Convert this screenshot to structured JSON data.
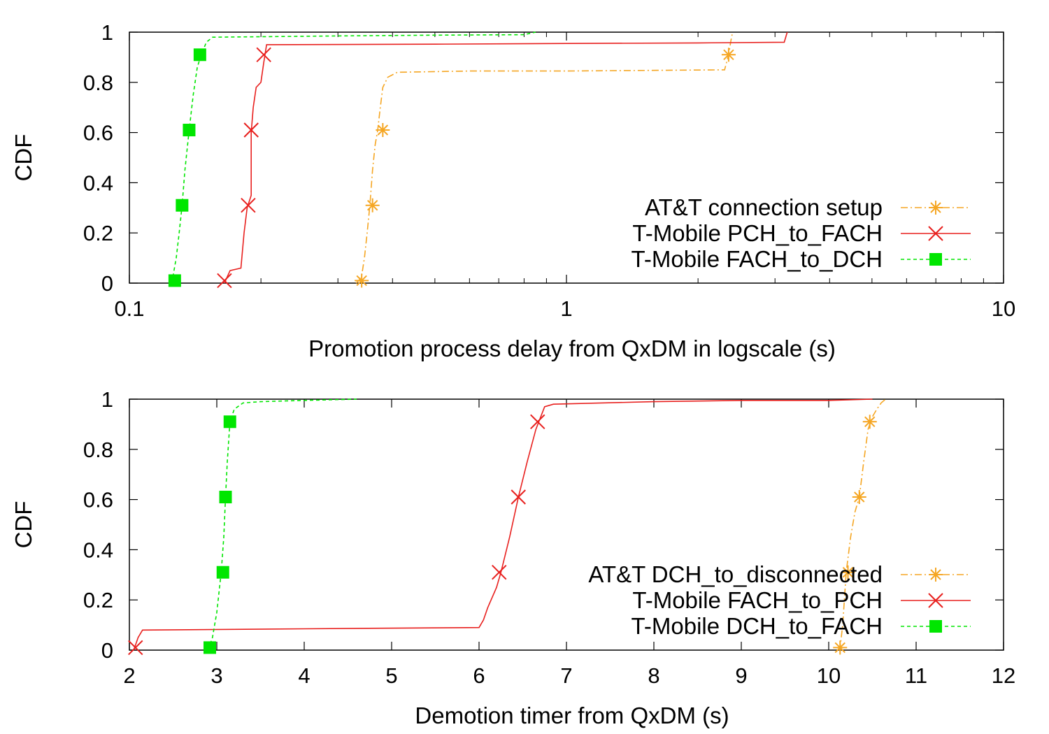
{
  "chart_data": [
    {
      "type": "line",
      "xscale": "log",
      "xlim": [
        0.1,
        10
      ],
      "ylim": [
        0,
        1
      ],
      "xticks": [
        0.1,
        1,
        10
      ],
      "xtick_labels": [
        "0.1",
        "1",
        "10"
      ],
      "yticks": [
        0,
        0.2,
        0.4,
        0.6,
        0.8,
        1
      ],
      "ytick_labels": [
        "0",
        "0.2",
        "0.4",
        "0.6",
        "0.8",
        "1"
      ],
      "xlabel": "Promotion process delay from QxDM in logscale (s)",
      "ylabel": "CDF",
      "legend_position": "bottom-right",
      "series": [
        {
          "name": "AT&T connection setup",
          "color": "#f5a623",
          "line": "dashdot",
          "marker": "asterisk",
          "points": [
            [
              0.33,
              0
            ],
            [
              0.335,
              0.01
            ],
            [
              0.34,
              0.03
            ],
            [
              0.345,
              0.1
            ],
            [
              0.35,
              0.2
            ],
            [
              0.355,
              0.31
            ],
            [
              0.36,
              0.45
            ],
            [
              0.365,
              0.55
            ],
            [
              0.37,
              0.61
            ],
            [
              0.375,
              0.7
            ],
            [
              0.38,
              0.78
            ],
            [
              0.39,
              0.82
            ],
            [
              0.41,
              0.84
            ],
            [
              0.6,
              0.845
            ],
            [
              1.0,
              0.845
            ],
            [
              2.3,
              0.85
            ],
            [
              2.35,
              0.91
            ],
            [
              2.38,
              0.97
            ],
            [
              2.4,
              1.0
            ]
          ],
          "markers": [
            [
              0.34,
              0.01
            ],
            [
              0.36,
              0.31
            ],
            [
              0.38,
              0.61
            ],
            [
              2.35,
              0.91
            ]
          ]
        },
        {
          "name": "T-Mobile PCH_to_FACH",
          "color": "#e8201e",
          "line": "solid",
          "marker": "x",
          "points": [
            [
              0.165,
              0
            ],
            [
              0.17,
              0.05
            ],
            [
              0.18,
              0.06
            ],
            [
              0.183,
              0.2
            ],
            [
              0.186,
              0.3
            ],
            [
              0.19,
              0.35
            ],
            [
              0.19,
              0.6
            ],
            [
              0.192,
              0.7
            ],
            [
              0.195,
              0.78
            ],
            [
              0.2,
              0.8
            ],
            [
              0.203,
              0.88
            ],
            [
              0.206,
              0.95
            ],
            [
              0.5,
              0.952
            ],
            [
              1.0,
              0.955
            ],
            [
              2.0,
              0.957
            ],
            [
              3.15,
              0.96
            ],
            [
              3.2,
              1.0
            ]
          ],
          "markers": [
            [
              0.165,
              0.01
            ],
            [
              0.187,
              0.31
            ],
            [
              0.19,
              0.61
            ],
            [
              0.203,
              0.91
            ]
          ]
        },
        {
          "name": "T-Mobile FACH_to_DCH",
          "color": "#00e600",
          "line": "dashed",
          "marker": "square",
          "points": [
            [
              0.125,
              0
            ],
            [
              0.128,
              0.1
            ],
            [
              0.13,
              0.2
            ],
            [
              0.132,
              0.31
            ],
            [
              0.134,
              0.45
            ],
            [
              0.137,
              0.61
            ],
            [
              0.14,
              0.75
            ],
            [
              0.143,
              0.86
            ],
            [
              0.146,
              0.91
            ],
            [
              0.15,
              0.96
            ],
            [
              0.155,
              0.98
            ],
            [
              0.3,
              0.985
            ],
            [
              0.5,
              0.988
            ],
            [
              0.8,
              0.99
            ],
            [
              0.85,
              1.0
            ]
          ],
          "markers": [
            [
              0.127,
              0.01
            ],
            [
              0.132,
              0.31
            ],
            [
              0.137,
              0.61
            ],
            [
              0.145,
              0.91
            ]
          ]
        }
      ]
    },
    {
      "type": "line",
      "xscale": "linear",
      "xlim": [
        2,
        12
      ],
      "ylim": [
        0,
        1
      ],
      "xticks": [
        2,
        3,
        4,
        5,
        6,
        7,
        8,
        9,
        10,
        11,
        12
      ],
      "xtick_labels": [
        "2",
        "3",
        "4",
        "5",
        "6",
        "7",
        "8",
        "9",
        "10",
        "11",
        "12"
      ],
      "yticks": [
        0,
        0.2,
        0.4,
        0.6,
        0.8,
        1
      ],
      "ytick_labels": [
        "0",
        "0.2",
        "0.4",
        "0.6",
        "0.8",
        "1"
      ],
      "xlabel": "Demotion timer from QxDM (s)",
      "ylabel": "CDF",
      "legend_position": "bottom-right",
      "series": [
        {
          "name": "AT&T DCH_to_disconnected",
          "color": "#f5a623",
          "line": "dashdot",
          "marker": "asterisk",
          "points": [
            [
              10.1,
              0
            ],
            [
              10.13,
              0.01
            ],
            [
              10.16,
              0.1
            ],
            [
              10.2,
              0.31
            ],
            [
              10.25,
              0.45
            ],
            [
              10.3,
              0.55
            ],
            [
              10.35,
              0.61
            ],
            [
              10.4,
              0.75
            ],
            [
              10.45,
              0.88
            ],
            [
              10.5,
              0.93
            ],
            [
              10.55,
              0.96
            ],
            [
              10.6,
              0.985
            ],
            [
              10.65,
              1.0
            ]
          ],
          "markers": [
            [
              10.13,
              0.01
            ],
            [
              10.22,
              0.31
            ],
            [
              10.35,
              0.61
            ],
            [
              10.47,
              0.91
            ]
          ]
        },
        {
          "name": "T-Mobile FACH_to_PCH",
          "color": "#e8201e",
          "line": "solid",
          "marker": "x",
          "points": [
            [
              2.05,
              0
            ],
            [
              2.1,
              0.05
            ],
            [
              2.15,
              0.08
            ],
            [
              4.0,
              0.085
            ],
            [
              6.0,
              0.09
            ],
            [
              6.05,
              0.12
            ],
            [
              6.1,
              0.17
            ],
            [
              6.2,
              0.25
            ],
            [
              6.25,
              0.31
            ],
            [
              6.35,
              0.45
            ],
            [
              6.45,
              0.61
            ],
            [
              6.55,
              0.75
            ],
            [
              6.65,
              0.88
            ],
            [
              6.75,
              0.97
            ],
            [
              6.85,
              0.98
            ],
            [
              8.0,
              0.99
            ],
            [
              9.0,
              0.995
            ],
            [
              10.0,
              0.995
            ],
            [
              10.5,
              1.0
            ]
          ],
          "markers": [
            [
              2.07,
              0.01
            ],
            [
              6.23,
              0.31
            ],
            [
              6.45,
              0.61
            ],
            [
              6.67,
              0.91
            ]
          ]
        },
        {
          "name": "T-Mobile DCH_to_FACH",
          "color": "#00e600",
          "line": "dashed",
          "marker": "square",
          "points": [
            [
              2.9,
              0
            ],
            [
              2.95,
              0.05
            ],
            [
              3.0,
              0.15
            ],
            [
              3.05,
              0.31
            ],
            [
              3.08,
              0.45
            ],
            [
              3.1,
              0.61
            ],
            [
              3.12,
              0.75
            ],
            [
              3.15,
              0.91
            ],
            [
              3.2,
              0.96
            ],
            [
              3.3,
              0.985
            ],
            [
              3.5,
              0.99
            ],
            [
              4.0,
              0.995
            ],
            [
              4.6,
              1.0
            ]
          ],
          "markers": [
            [
              2.92,
              0.01
            ],
            [
              3.07,
              0.31
            ],
            [
              3.1,
              0.61
            ],
            [
              3.15,
              0.91
            ]
          ]
        }
      ]
    }
  ]
}
